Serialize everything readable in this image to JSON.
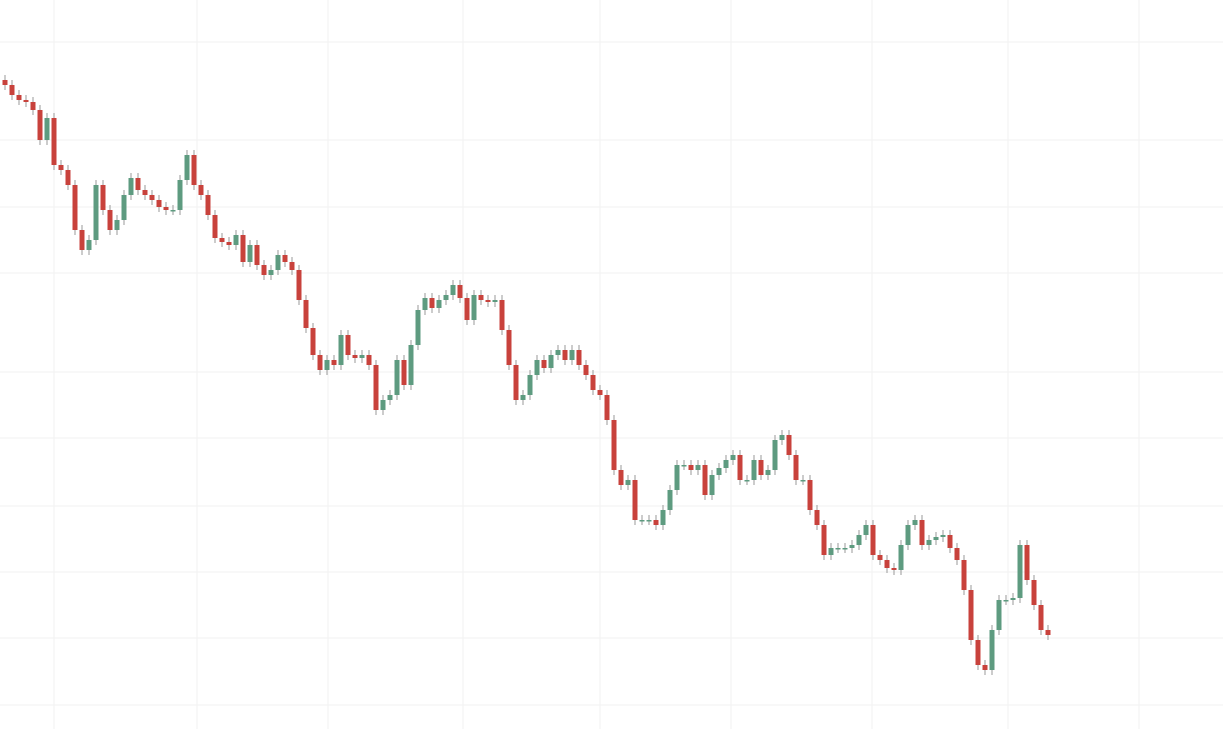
{
  "chart_data": {
    "type": "candlestick",
    "up_color": "#5e9b80",
    "down_color": "#c8423c",
    "ylim": [
      -29,
      700
    ],
    "open": [
      620,
      615,
      605,
      600,
      598,
      590,
      560,
      582,
      535,
      530,
      515,
      470,
      450,
      460,
      515,
      490,
      470,
      480,
      505,
      522,
      510,
      505,
      500,
      493,
      490,
      490,
      520,
      545,
      515,
      505,
      485,
      462,
      458,
      455,
      465,
      438,
      455,
      435,
      425,
      430,
      445,
      438,
      430,
      400,
      372,
      345,
      330,
      340,
      335,
      365,
      345,
      342,
      345,
      335,
      290,
      300,
      305,
      340,
      315,
      355,
      390,
      402,
      392,
      400,
      405,
      415,
      402,
      380,
      405,
      400,
      398,
      400,
      370,
      335,
      300,
      305,
      325,
      340,
      332,
      345,
      350,
      340,
      350,
      335,
      325,
      310,
      305,
      280,
      230,
      215,
      220,
      180,
      180,
      180,
      175,
      190,
      210,
      235,
      235,
      230,
      235,
      205,
      225,
      232,
      240,
      245,
      220,
      220,
      240,
      225,
      230,
      260,
      265,
      245,
      220,
      220,
      190,
      175,
      145,
      152,
      152,
      152,
      155,
      165,
      175,
      145,
      140,
      132,
      130,
      155,
      175,
      180,
      155,
      160,
      163,
      165,
      152,
      140,
      110,
      60,
      35,
      30,
      70,
      100,
      100,
      102,
      155,
      120,
      95,
      70
    ],
    "high": [
      625,
      620,
      610,
      605,
      603,
      595,
      587,
      587,
      540,
      535,
      520,
      475,
      465,
      520,
      520,
      495,
      485,
      510,
      527,
      527,
      515,
      510,
      505,
      498,
      495,
      525,
      550,
      550,
      520,
      510,
      490,
      467,
      463,
      470,
      470,
      460,
      460,
      440,
      435,
      450,
      450,
      443,
      435,
      405,
      377,
      350,
      345,
      345,
      370,
      370,
      350,
      350,
      350,
      340,
      305,
      310,
      345,
      345,
      360,
      395,
      407,
      407,
      405,
      410,
      420,
      420,
      407,
      410,
      410,
      405,
      405,
      405,
      375,
      340,
      310,
      330,
      345,
      345,
      350,
      355,
      355,
      355,
      355,
      340,
      330,
      315,
      310,
      285,
      235,
      225,
      225,
      185,
      185,
      185,
      195,
      215,
      240,
      240,
      240,
      240,
      240,
      230,
      237,
      245,
      250,
      250,
      225,
      245,
      245,
      235,
      265,
      270,
      270,
      250,
      225,
      225,
      195,
      180,
      157,
      157,
      157,
      160,
      170,
      180,
      180,
      150,
      145,
      137,
      160,
      180,
      185,
      185,
      165,
      168,
      170,
      170,
      157,
      145,
      115,
      65,
      40,
      75,
      105,
      105,
      107,
      160,
      160,
      125,
      100,
      75
    ],
    "low": [
      610,
      600,
      595,
      593,
      585,
      555,
      555,
      530,
      525,
      510,
      465,
      445,
      445,
      455,
      485,
      465,
      465,
      475,
      500,
      505,
      500,
      495,
      488,
      485,
      485,
      485,
      515,
      510,
      500,
      480,
      457,
      453,
      450,
      450,
      433,
      433,
      430,
      420,
      420,
      425,
      433,
      425,
      395,
      367,
      340,
      325,
      325,
      330,
      330,
      340,
      337,
      337,
      330,
      285,
      285,
      295,
      300,
      310,
      310,
      350,
      385,
      387,
      387,
      395,
      400,
      397,
      375,
      375,
      395,
      393,
      393,
      365,
      330,
      295,
      295,
      300,
      320,
      327,
      327,
      340,
      335,
      335,
      330,
      320,
      305,
      300,
      275,
      225,
      210,
      210,
      175,
      175,
      175,
      170,
      170,
      185,
      205,
      230,
      225,
      225,
      200,
      200,
      220,
      227,
      235,
      215,
      215,
      215,
      220,
      220,
      225,
      255,
      240,
      215,
      215,
      185,
      170,
      140,
      140,
      147,
      147,
      147,
      150,
      160,
      140,
      135,
      127,
      125,
      125,
      150,
      170,
      150,
      150,
      155,
      158,
      147,
      135,
      105,
      55,
      30,
      25,
      25,
      65,
      95,
      95,
      97,
      115,
      90,
      65,
      60
    ],
    "close": [
      615,
      605,
      600,
      598,
      590,
      560,
      582,
      535,
      530,
      515,
      470,
      450,
      460,
      515,
      490,
      470,
      480,
      505,
      522,
      510,
      505,
      500,
      493,
      490,
      490,
      520,
      545,
      515,
      505,
      485,
      462,
      458,
      455,
      465,
      438,
      455,
      435,
      425,
      430,
      445,
      438,
      430,
      400,
      372,
      345,
      330,
      340,
      335,
      365,
      345,
      342,
      345,
      335,
      290,
      300,
      305,
      340,
      315,
      355,
      390,
      402,
      392,
      400,
      405,
      415,
      402,
      380,
      405,
      400,
      398,
      400,
      370,
      335,
      300,
      305,
      325,
      340,
      332,
      345,
      350,
      340,
      350,
      335,
      325,
      310,
      305,
      280,
      230,
      215,
      220,
      180,
      180,
      180,
      175,
      190,
      210,
      235,
      235,
      230,
      235,
      205,
      225,
      232,
      240,
      245,
      220,
      220,
      240,
      225,
      230,
      260,
      265,
      245,
      220,
      220,
      190,
      175,
      145,
      152,
      152,
      152,
      155,
      165,
      175,
      145,
      140,
      132,
      130,
      155,
      175,
      180,
      155,
      160,
      163,
      165,
      152,
      140,
      110,
      60,
      35,
      30,
      70,
      100,
      100,
      102,
      155,
      120,
      95,
      70,
      65
    ]
  }
}
